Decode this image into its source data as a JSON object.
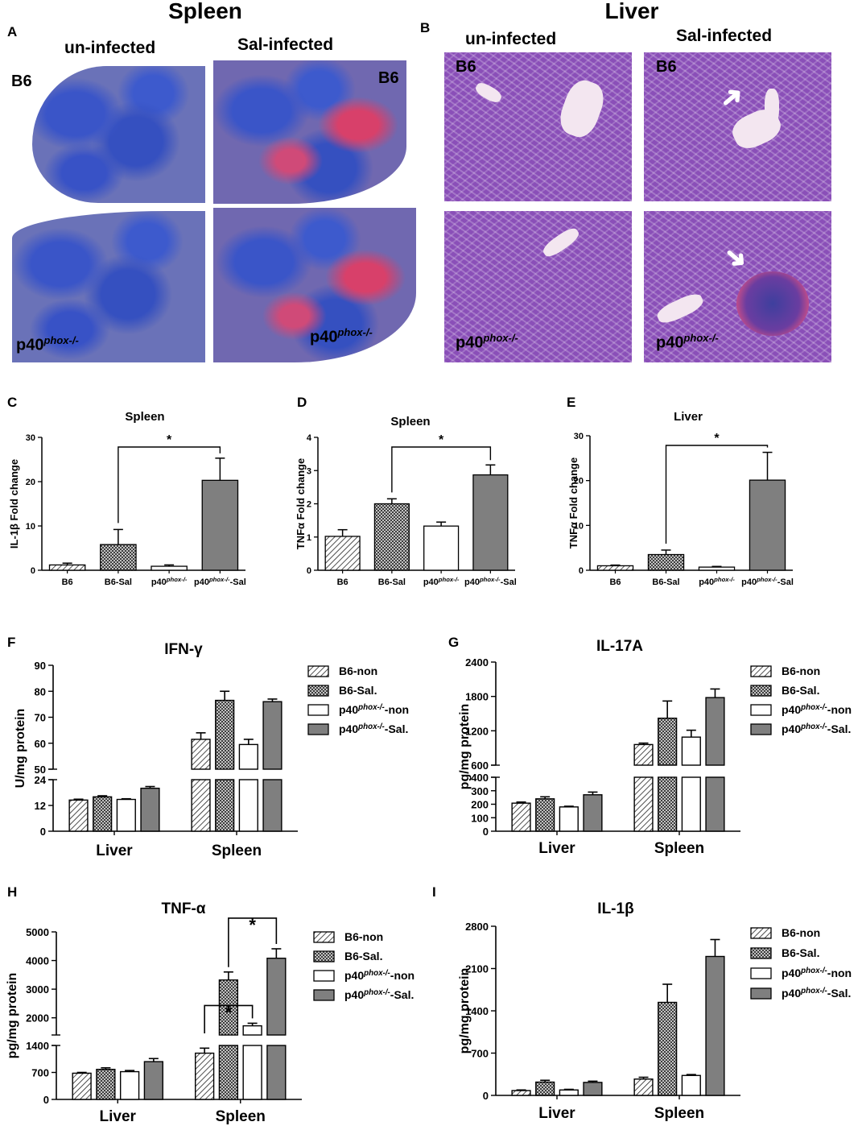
{
  "panels": {
    "A": "A",
    "B": "B",
    "C": "C",
    "D": "D",
    "E": "E",
    "F": "F",
    "G": "G",
    "H": "H",
    "I": "I"
  },
  "histology": {
    "spleen_title": "Spleen",
    "liver_title": "Liver",
    "uninfected": "un-infected",
    "infected": "Sal-infected",
    "b6": "B6",
    "p40_base": "p40",
    "p40_sup": "phox-/-"
  },
  "colors": {
    "hatch": "#ffffff",
    "crosshatch": "#ffffff",
    "white": "#ffffff",
    "gray": "#7f7f7f",
    "stroke": "#000000"
  },
  "chart_data": [
    {
      "id": "C",
      "type": "bar",
      "title": "Spleen",
      "ylabel": "IL-1β  Fold change",
      "categories": [
        "B6",
        "B6-Sal",
        "p40phox-/-",
        "p40phox-/--Sal"
      ],
      "values": [
        1.2,
        5.8,
        0.9,
        20.3
      ],
      "errors": [
        0.4,
        3.4,
        0.3,
        5.0
      ],
      "patterns": [
        "hatch",
        "cross",
        "white",
        "gray"
      ],
      "ylim": [
        0,
        30
      ],
      "yticks": [
        0,
        10,
        20,
        30
      ],
      "significance": [
        {
          "from": 1,
          "to": 3,
          "label": "*"
        }
      ]
    },
    {
      "id": "D",
      "type": "bar",
      "title": "Spleen",
      "ylabel": "TNFα  Fold change",
      "categories": [
        "B6",
        "B6-Sal",
        "p40phox-/-",
        "p40phox-/--Sal"
      ],
      "values": [
        1.02,
        2.0,
        1.33,
        2.87
      ],
      "errors": [
        0.2,
        0.15,
        0.12,
        0.3
      ],
      "patterns": [
        "hatch",
        "cross",
        "white",
        "gray"
      ],
      "ylim": [
        0,
        4
      ],
      "yticks": [
        0,
        1,
        2,
        3,
        4
      ],
      "significance": [
        {
          "from": 1,
          "to": 3,
          "label": "*"
        }
      ]
    },
    {
      "id": "E",
      "type": "bar",
      "title": "Liver",
      "ylabel": "TNFα  Fold change",
      "categories": [
        "B6",
        "B6-Sal",
        "p40phox-/-",
        "p40phox-/--Sal"
      ],
      "values": [
        1.0,
        3.5,
        0.7,
        20.1
      ],
      "errors": [
        0.15,
        1.0,
        0.15,
        6.2
      ],
      "patterns": [
        "hatch",
        "cross",
        "white",
        "gray"
      ],
      "ylim": [
        0,
        30
      ],
      "yticks": [
        0,
        10,
        20,
        30
      ],
      "significance": [
        {
          "from": 1,
          "to": 3,
          "label": "*"
        }
      ]
    },
    {
      "id": "F",
      "type": "bar",
      "title": "IFN-γ",
      "ylabel": "U/mg protein",
      "groups": [
        "Liver",
        "Spleen"
      ],
      "series": [
        {
          "name": "B6-non",
          "pattern": "hatch",
          "values": [
            14.5,
            61.5
          ],
          "errors": [
            0.4,
            2.5
          ]
        },
        {
          "name": "B6-Sal.",
          "pattern": "cross",
          "values": [
            16.0,
            76.5
          ],
          "errors": [
            0.5,
            3.5
          ]
        },
        {
          "name": "p40phox-/--non",
          "pattern": "white",
          "values": [
            14.8,
            59.5
          ],
          "errors": [
            0.3,
            2.0
          ]
        },
        {
          "name": "p40phox-/--Sal.",
          "pattern": "gray",
          "values": [
            20.0,
            76.0
          ],
          "errors": [
            0.8,
            1.0
          ]
        }
      ],
      "axis_break": true,
      "lower_range": [
        0,
        24
      ],
      "lower_ticks": [
        0,
        12,
        24
      ],
      "upper_range": [
        50,
        90
      ],
      "upper_ticks": [
        50,
        60,
        70,
        80,
        90
      ]
    },
    {
      "id": "G",
      "type": "bar",
      "title": "IL-17A",
      "ylabel": "pg/mg protein",
      "groups": [
        "Liver",
        "Spleen"
      ],
      "series": [
        {
          "name": "B6-non",
          "pattern": "hatch",
          "values": [
            208,
            960
          ],
          "errors": [
            8,
            25
          ]
        },
        {
          "name": "B6-Sal.",
          "pattern": "cross",
          "values": [
            240,
            1420
          ],
          "errors": [
            15,
            300
          ]
        },
        {
          "name": "p40phox-/--non",
          "pattern": "white",
          "values": [
            180,
            1090
          ],
          "errors": [
            5,
            120
          ]
        },
        {
          "name": "p40phox-/--Sal.",
          "pattern": "gray",
          "values": [
            270,
            1780
          ],
          "errors": [
            20,
            150
          ]
        }
      ],
      "axis_break": true,
      "lower_range": [
        0,
        400
      ],
      "lower_ticks": [
        0,
        100,
        200,
        300,
        400
      ],
      "upper_range": [
        600,
        2400
      ],
      "upper_ticks": [
        600,
        1200,
        1800,
        2400
      ]
    },
    {
      "id": "H",
      "type": "bar",
      "title": "TNF-α",
      "ylabel": "pg/mg protein",
      "groups": [
        "Liver",
        "Spleen"
      ],
      "series": [
        {
          "name": "B6-non",
          "pattern": "hatch",
          "values": [
            680,
            1200
          ],
          "errors": [
            20,
            130
          ]
        },
        {
          "name": "B6-Sal.",
          "pattern": "cross",
          "values": [
            780,
            3320
          ],
          "errors": [
            40,
            280
          ]
        },
        {
          "name": "p40phox-/--non",
          "pattern": "white",
          "values": [
            720,
            1720
          ],
          "errors": [
            30,
            90
          ]
        },
        {
          "name": "p40phox-/--Sal.",
          "pattern": "gray",
          "values": [
            980,
            4080
          ],
          "errors": [
            80,
            330
          ]
        }
      ],
      "axis_break": true,
      "lower_range": [
        0,
        1400
      ],
      "lower_ticks": [
        0,
        700,
        1400
      ],
      "upper_range": [
        1400,
        5000
      ],
      "upper_ticks": [
        2000,
        3000,
        4000,
        5000
      ],
      "significance": [
        {
          "group": 1,
          "from": 0,
          "to": 2,
          "label": "*"
        },
        {
          "group": 1,
          "from": 1,
          "to": 3,
          "label": "*"
        }
      ]
    },
    {
      "id": "I",
      "type": "bar",
      "title": "IL-1β",
      "ylabel": "pg/mg protein",
      "groups": [
        "Liver",
        "Spleen"
      ],
      "series": [
        {
          "name": "B6-non",
          "pattern": "hatch",
          "values": [
            80,
            270
          ],
          "errors": [
            10,
            30
          ]
        },
        {
          "name": "B6-Sal.",
          "pattern": "cross",
          "values": [
            220,
            1540
          ],
          "errors": [
            30,
            300
          ]
        },
        {
          "name": "p40phox-/--non",
          "pattern": "white",
          "values": [
            90,
            330
          ],
          "errors": [
            10,
            15
          ]
        },
        {
          "name": "p40phox-/--Sal.",
          "pattern": "gray",
          "values": [
            215,
            2300
          ],
          "errors": [
            20,
            280
          ]
        }
      ],
      "axis_break": false,
      "ylim": [
        0,
        2800
      ],
      "yticks": [
        0,
        700,
        1400,
        2100,
        2800
      ]
    }
  ]
}
